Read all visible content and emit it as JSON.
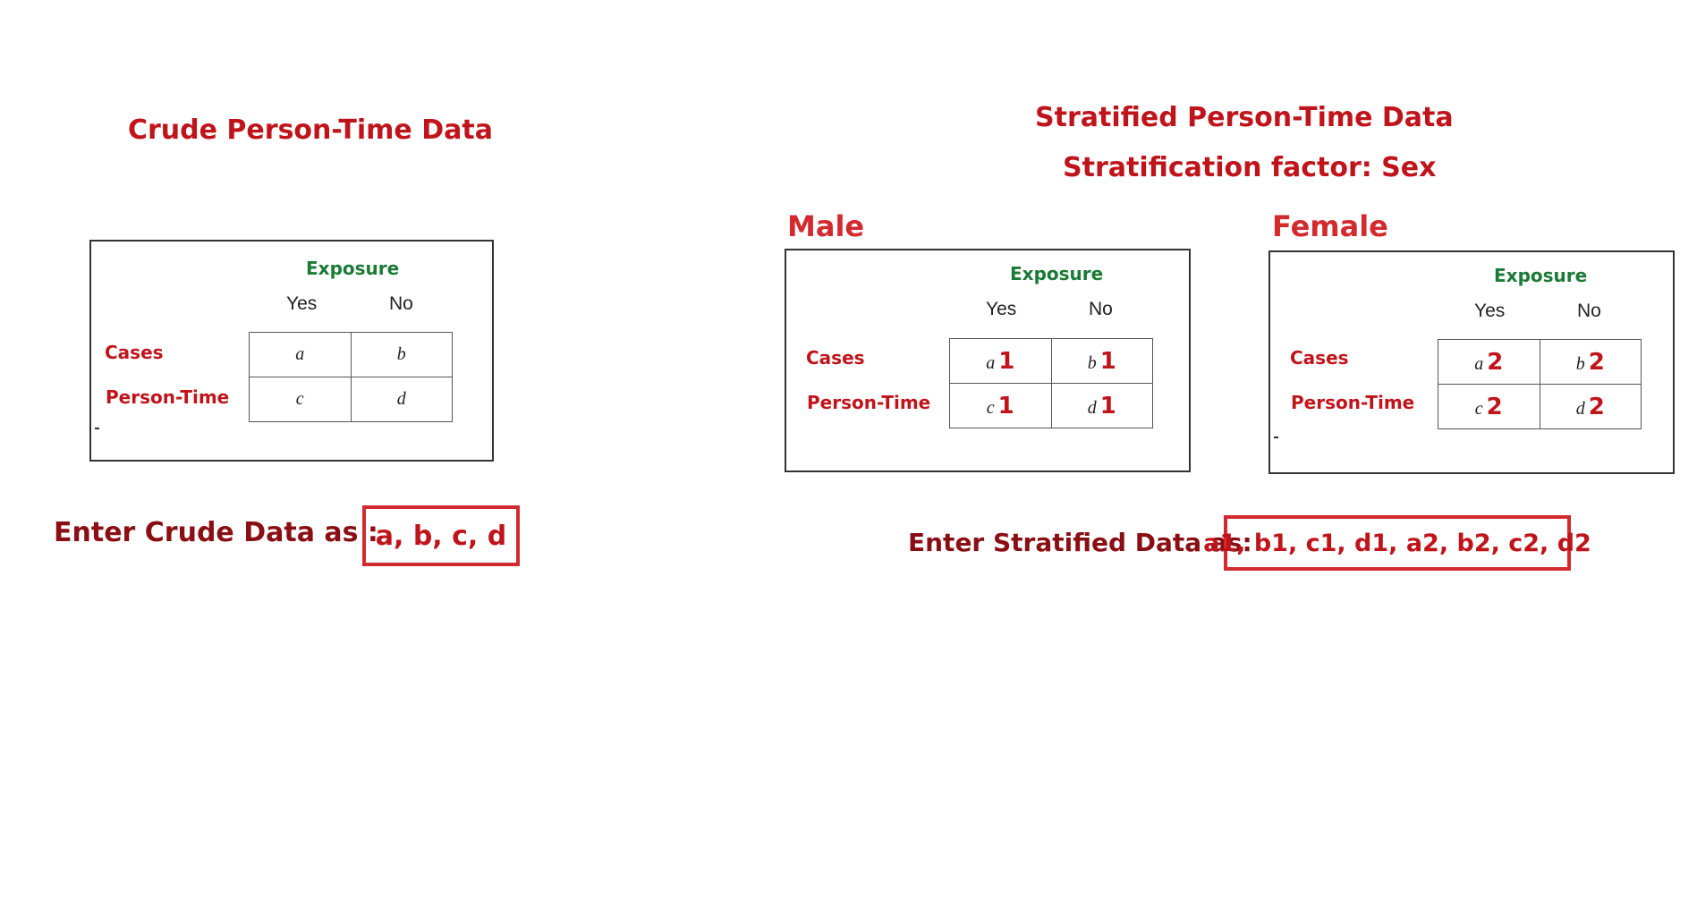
{
  "crude": {
    "title": "Crude Person-Time Data",
    "exposure_label": "Exposure",
    "col_yes": "Yes",
    "col_no": "No",
    "row_cases": "Cases",
    "row_person_time": "Person-Time",
    "cells": {
      "a": "a",
      "b": "b",
      "c": "c",
      "d": "d"
    },
    "enter_label": "Enter Crude Data as  :",
    "enter_value": "a, b, c, d"
  },
  "stratified": {
    "title": "Stratified Person-Time Data",
    "factor": "Stratification factor: Sex",
    "male": {
      "label": "Male",
      "exposure_label": "Exposure",
      "col_yes": "Yes",
      "col_no": "No",
      "row_cases": "Cases",
      "row_person_time": "Person-Time",
      "cells": {
        "a": "a",
        "a_sub": "1",
        "b": "b",
        "b_sub": "1",
        "c": "c",
        "c_sub": "1",
        "d": "d",
        "d_sub": "1"
      }
    },
    "female": {
      "label": "Female",
      "exposure_label": "Exposure",
      "col_yes": "Yes",
      "col_no": "No",
      "row_cases": "Cases",
      "row_person_time": "Person-Time",
      "cells": {
        "a": "a",
        "a_sub": "2",
        "b": "b",
        "b_sub": "2",
        "c": "c",
        "c_sub": "2",
        "d": "d",
        "d_sub": "2"
      }
    },
    "enter_label": "Enter Stratified Data as:",
    "enter_value": "a1, b1, c1, d1, a2, b2, c2, d2"
  }
}
